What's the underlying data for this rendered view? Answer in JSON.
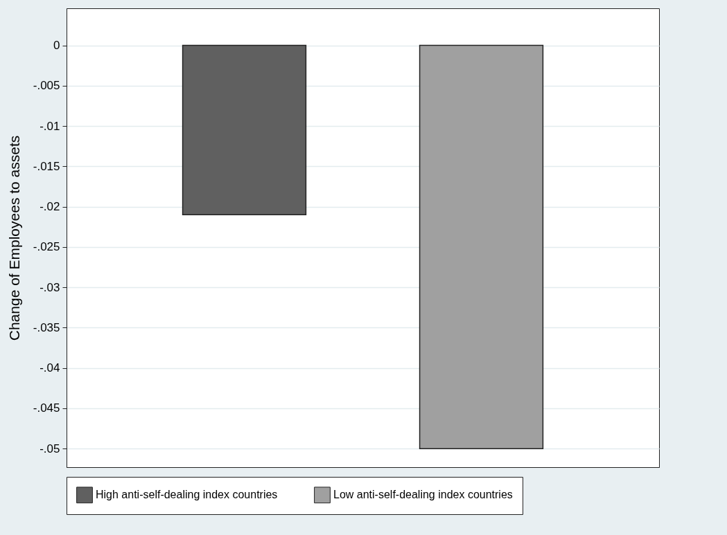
{
  "chart_data": {
    "type": "bar",
    "ylabel": "Change of Employees to assets",
    "categories": [
      null,
      null
    ],
    "series": [
      {
        "name": "High anti-self-dealing index countries",
        "color": "#606060",
        "values": [
          -0.021,
          null
        ]
      },
      {
        "name": "Low anti-self-dealing index countries",
        "color": "#a0a0a0",
        "values": [
          null,
          -0.05
        ]
      }
    ],
    "ylim": [
      -0.0523,
      0.0046
    ],
    "yticks": [
      0,
      {
        "value": -0.005,
        "label": "-.005"
      },
      {
        "value": -0.01,
        "label": "-.01"
      },
      {
        "value": -0.015,
        "label": "-.015"
      },
      {
        "value": -0.02,
        "label": "-.02"
      },
      {
        "value": -0.025,
        "label": "-.025"
      },
      {
        "value": -0.03,
        "label": "-.03"
      },
      {
        "value": -0.035,
        "label": "-.035"
      },
      {
        "value": -0.04,
        "label": "-.04"
      },
      {
        "value": -0.045,
        "label": "-.045"
      },
      {
        "value": -0.05,
        "label": "-.05"
      }
    ],
    "grid": "y",
    "legend": "bottom"
  }
}
